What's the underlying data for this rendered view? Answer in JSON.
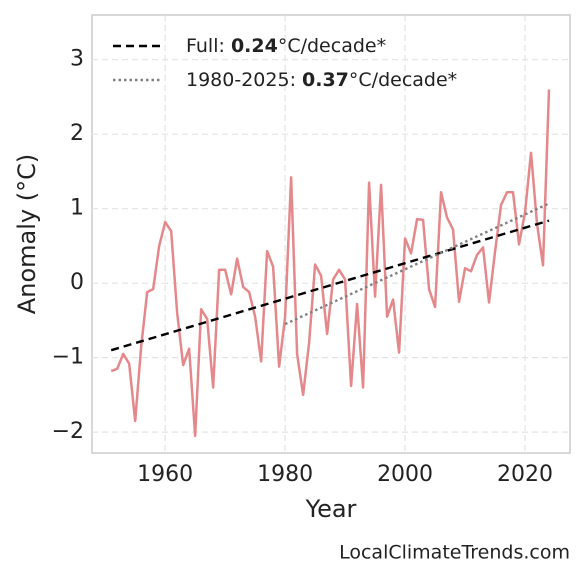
{
  "chart_data": {
    "type": "line",
    "x_label": "Year",
    "y_label": "Anomaly (°C)",
    "source": "LocalClimateTrends.com",
    "xlim": [
      1947.8,
      2027.5
    ],
    "xticks": [
      1960,
      1980,
      2000,
      2020
    ],
    "ylim": [
      -2.28,
      3.6
    ],
    "yticks": [
      {
        "value": -2,
        "label": "−2"
      },
      {
        "value": -1,
        "label": "−1"
      },
      0,
      1,
      2,
      3
    ],
    "grid": true,
    "legend": "upper left",
    "series": [
      {
        "name_parts": [
          "Full: ",
          "0.24",
          "°C/decade*"
        ],
        "color": "#000000",
        "style": "dashed",
        "x": [
          1951,
          2024
        ],
        "values": [
          -0.9,
          0.84
        ]
      },
      {
        "name_parts": [
          "1980-2025: ",
          "0.37",
          "°C/decade*"
        ],
        "color": "#808080",
        "style": "dotted",
        "x": [
          1980,
          2024
        ],
        "values": [
          -0.55,
          1.07
        ]
      },
      {
        "color": "#e4888b",
        "style": "solid",
        "x": [
          1951,
          1952,
          1953,
          1954,
          1955,
          1956,
          1957,
          1958,
          1959,
          1960,
          1961,
          1962,
          1963,
          1964,
          1965,
          1966,
          1967,
          1968,
          1969,
          1970,
          1971,
          1972,
          1973,
          1974,
          1975,
          1976,
          1977,
          1978,
          1979,
          1980,
          1981,
          1982,
          1983,
          1984,
          1985,
          1986,
          1987,
          1988,
          1989,
          1990,
          1991,
          1992,
          1993,
          1994,
          1995,
          1996,
          1997,
          1998,
          1999,
          2000,
          2001,
          2002,
          2003,
          2004,
          2005,
          2006,
          2007,
          2008,
          2009,
          2010,
          2011,
          2012,
          2013,
          2014,
          2015,
          2016,
          2017,
          2018,
          2019,
          2020,
          2021,
          2022,
          2023,
          2024
        ],
        "values": [
          -1.18,
          -1.15,
          -0.95,
          -1.08,
          -1.85,
          -0.85,
          -0.12,
          -0.08,
          0.5,
          0.82,
          0.7,
          -0.4,
          -1.1,
          -0.88,
          -2.05,
          -0.35,
          -0.48,
          -1.4,
          0.18,
          0.18,
          -0.15,
          0.33,
          -0.05,
          -0.12,
          -0.45,
          -1.05,
          0.43,
          0.22,
          -1.12,
          -0.45,
          1.42,
          -0.95,
          -1.5,
          -0.8,
          0.25,
          0.1,
          -0.68,
          0.05,
          0.18,
          0.05,
          -1.38,
          -0.28,
          -1.4,
          1.35,
          -0.18,
          1.32,
          -0.45,
          -0.22,
          -0.93,
          0.6,
          0.4,
          0.86,
          0.85,
          -0.08,
          -0.32,
          1.22,
          0.88,
          0.72,
          -0.25,
          0.2,
          0.16,
          0.38,
          0.48,
          -0.26,
          0.42,
          1.05,
          1.22,
          1.22,
          0.52,
          0.95,
          1.75,
          0.8,
          0.24,
          2.6
        ]
      }
    ]
  }
}
